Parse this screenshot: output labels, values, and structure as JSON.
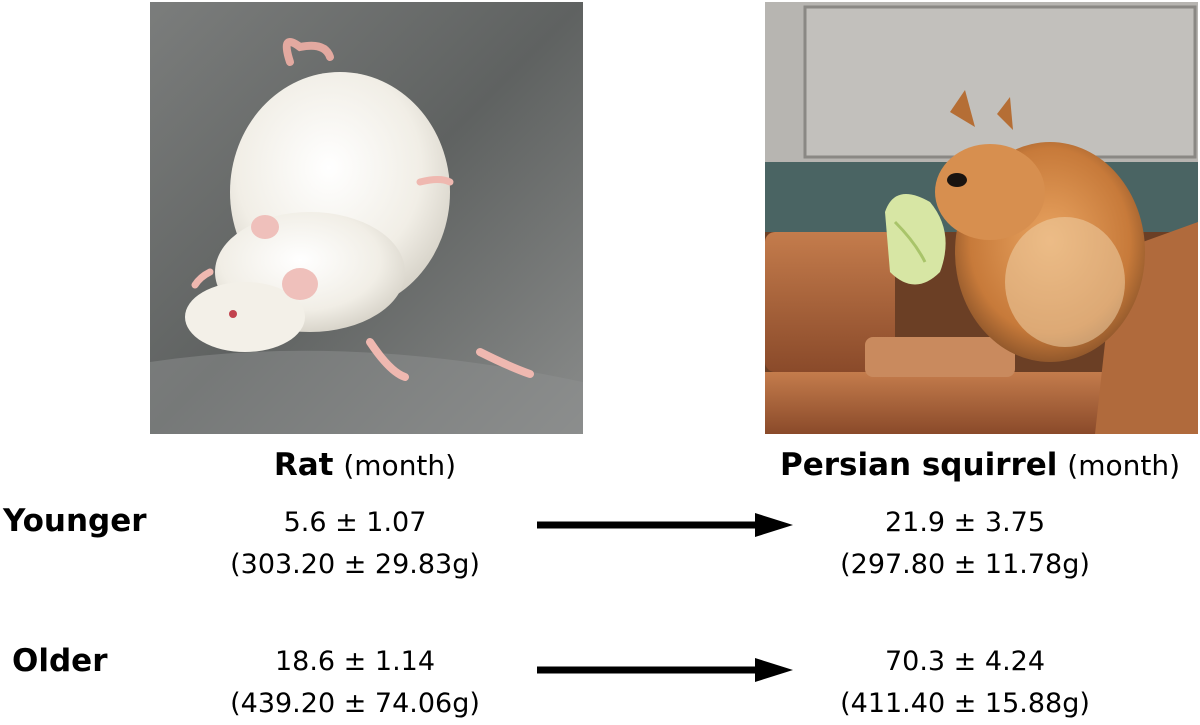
{
  "columns": {
    "rat": {
      "name": "Rat",
      "unit": "(month)"
    },
    "squirrel": {
      "name": "Persian squirrel",
      "unit": "(month)"
    }
  },
  "rows": {
    "younger": {
      "label": "Younger",
      "rat_age": "5.6 ± 1.07",
      "rat_weight": "(303.20 ± 29.83g)",
      "squirrel_age": "21.9 ± 3.75",
      "squirrel_weight": "(297.80 ± 11.78g)"
    },
    "older": {
      "label": "Older",
      "rat_age": "18.6 ± 1.14",
      "rat_weight": "(439.20 ± 74.06g)",
      "squirrel_age": "70.3 ± 4.24",
      "squirrel_weight": "(411.40 ± 15.88g)"
    }
  },
  "colors": {
    "arrow": "#000000",
    "rat_fur": "#f4f1ea",
    "steel_bg": "#6e7070",
    "squirrel_fur": "#c77a3a",
    "wood": "#b46a3f",
    "wall": "#b7b5b1"
  },
  "images": {
    "rat_photo": "white-rat-photo",
    "squirrel_photo": "persian-squirrel-photo"
  }
}
